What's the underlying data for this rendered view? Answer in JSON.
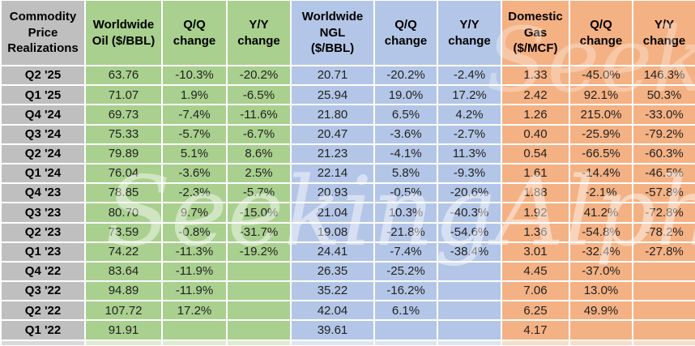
{
  "watermark": {
    "text": "SeekingAlpha"
  },
  "colors": {
    "label_gray": "#bfbfbf",
    "oil_green": "#a9d08e",
    "ngl_blue": "#b4c6e7",
    "gas_orange": "#f4b183",
    "gridline_white": "#ffffff",
    "header_text": "#000000",
    "data_text": "#222222"
  },
  "chart_data": {
    "type": "table",
    "title": "Commodity Price Realizations",
    "corner_label": "Commodity\nPrice\nRealizations",
    "columns": [
      "Worldwide\nOil ($/BBL)",
      "Q/Q\nchange",
      "Y/Y\nchange",
      "Worldwide\nNGL\n($/BBL)",
      "Q/Q\nchange",
      "Y/Y\nchange",
      "Domestic\nGas\n($/MCF)",
      "Q/Q\nchange",
      "Y/Y\nchange"
    ],
    "column_groups": [
      "oil",
      "oil",
      "oil",
      "ngl",
      "ngl",
      "ngl",
      "gas",
      "gas",
      "gas"
    ],
    "rows": [
      {
        "quarter": "Q2 '25",
        "values": [
          "63.76",
          "-10.3%",
          "-20.2%",
          "20.71",
          "-20.2%",
          "-2.4%",
          "1.33",
          "-45.0%",
          "146.3%"
        ]
      },
      {
        "quarter": "Q1 '25",
        "values": [
          "71.07",
          "1.9%",
          "-6.5%",
          "25.94",
          "19.0%",
          "17.2%",
          "2.42",
          "92.1%",
          "50.3%"
        ]
      },
      {
        "quarter": "Q4 '24",
        "values": [
          "69.73",
          "-7.4%",
          "-11.6%",
          "21.80",
          "6.5%",
          "4.2%",
          "1.26",
          "215.0%",
          "-33.0%"
        ]
      },
      {
        "quarter": "Q3 '24",
        "values": [
          "75.33",
          "-5.7%",
          "-6.7%",
          "20.47",
          "-3.6%",
          "-2.7%",
          "0.40",
          "-25.9%",
          "-79.2%"
        ]
      },
      {
        "quarter": "Q2 '24",
        "values": [
          "79.89",
          "5.1%",
          "8.6%",
          "21.23",
          "-4.1%",
          "11.3%",
          "0.54",
          "-66.5%",
          "-60.3%"
        ]
      },
      {
        "quarter": "Q1 '24",
        "values": [
          "76.04",
          "-3.6%",
          "2.5%",
          "22.14",
          "5.8%",
          "-9.3%",
          "1.61",
          "-14.4%",
          "-46.5%"
        ]
      },
      {
        "quarter": "Q4 '23",
        "values": [
          "78.85",
          "-2.3%",
          "-5.7%",
          "20.93",
          "-0.5%",
          "-20.6%",
          "1.88",
          "-2.1%",
          "-57.8%"
        ]
      },
      {
        "quarter": "Q3 '23",
        "values": [
          "80.70",
          "9.7%",
          "-15.0%",
          "21.04",
          "10.3%",
          "-40.3%",
          "1.92",
          "41.2%",
          "-72.8%"
        ]
      },
      {
        "quarter": "Q2 '23",
        "values": [
          "73.59",
          "-0.8%",
          "-31.7%",
          "19.08",
          "-21.8%",
          "-54.6%",
          "1.36",
          "-54.8%",
          "-78.2%"
        ]
      },
      {
        "quarter": "Q1 '23",
        "values": [
          "74.22",
          "-11.3%",
          "-19.2%",
          "24.41",
          "-7.4%",
          "-38.4%",
          "3.01",
          "-32.4%",
          "-27.8%"
        ]
      },
      {
        "quarter": "Q4 '22",
        "values": [
          "83.64",
          "-11.9%",
          "",
          "26.35",
          "-25.2%",
          "",
          "4.45",
          "-37.0%",
          ""
        ]
      },
      {
        "quarter": "Q3 '22",
        "values": [
          "94.89",
          "-11.9%",
          "",
          "35.22",
          "-16.2%",
          "",
          "7.06",
          "13.0%",
          ""
        ]
      },
      {
        "quarter": "Q2 '22",
        "values": [
          "107.72",
          "17.2%",
          "",
          "42.04",
          "6.1%",
          "",
          "6.25",
          "49.9%",
          ""
        ]
      },
      {
        "quarter": "Q1 '22",
        "values": [
          "91.91",
          "",
          "",
          "39.61",
          "",
          "",
          "4.17",
          "",
          ""
        ]
      }
    ]
  }
}
